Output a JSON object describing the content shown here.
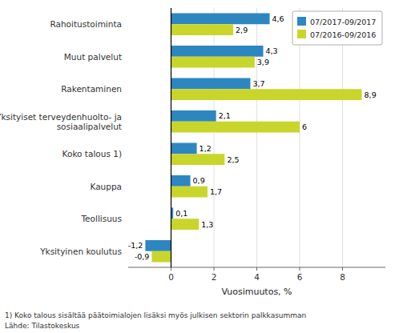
{
  "chart_data": {
    "type": "bar",
    "orientation": "horizontal",
    "categories": [
      "Rahoitustoiminta",
      "Muut palvelut",
      "Rakentaminen",
      "Yksityiset terveydenhuolto- ja\nsosiaalipalvelut",
      "Koko talous 1)",
      "Kauppa",
      "Teollisuus",
      "Yksityinen koulutus"
    ],
    "series": [
      {
        "name": "07/2017-09/2017",
        "color": "#2E86C1",
        "values": [
          4.6,
          4.3,
          3.7,
          2.1,
          1.2,
          0.9,
          0.1,
          -1.2
        ],
        "value_labels": [
          "4,6",
          "4,3",
          "3,7",
          "2,1",
          "1,2",
          "0,9",
          "0,1",
          "-1,2"
        ]
      },
      {
        "name": "07/2016-09/2016",
        "color": "#C8D62B",
        "values": [
          2.9,
          3.9,
          8.9,
          6.0,
          2.5,
          1.7,
          1.3,
          -0.9
        ],
        "value_labels": [
          "2,9",
          "3,9",
          "8,9",
          "6",
          "2,5",
          "1,7",
          "1,3",
          "-0,9"
        ]
      }
    ],
    "x_label": "Vuosimuutos, %",
    "xlim": [
      -2,
      10
    ],
    "xticks": [
      0,
      2,
      4,
      6,
      8
    ],
    "grid": true,
    "legend": "upper right",
    "data_labels": true,
    "annotations": [
      "1) Koko talous sisältää päätoimialojen lisäksi myös julkisen sektorin palkkasumman",
      "Lähde: Tilastokeskus"
    ]
  }
}
